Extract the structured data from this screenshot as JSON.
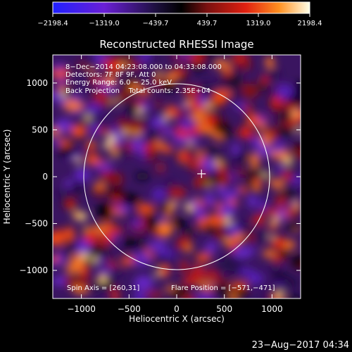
{
  "chart_data": {
    "type": "heatmap",
    "title": "Reconstructed RHESSI Image",
    "xlabel": "Heliocentric X (arcsec)",
    "ylabel": "Heliocentric Y (arcsec)",
    "xlim": [
      -1300,
      1300
    ],
    "ylim": [
      -1300,
      1300
    ],
    "x_ticks": [
      -1000,
      -500,
      0,
      500,
      1000
    ],
    "y_ticks": [
      -1000,
      -500,
      0,
      500,
      1000
    ],
    "x_tick_labels": [
      "−1000",
      "−500",
      "0",
      "500",
      "1000"
    ],
    "y_tick_labels": [
      "1000",
      "500",
      "0",
      "−500",
      "−1000"
    ],
    "colorbar": {
      "range": [
        -2198.4,
        2198.4
      ],
      "tick_labels": [
        "−2198.4",
        "−1319.0",
        "−439.7",
        "439.7",
        "1319.0",
        "2198.4"
      ],
      "colors": [
        "#2020ff",
        "#6a1fd6",
        "#1e1040",
        "#000000",
        "#7a1010",
        "#e02010",
        "#ff9020",
        "#ffffe8"
      ]
    },
    "annotations": [
      "8−Dec−2014 04:23:08.000 to 04:33:08.000",
      "Detectors: 7F 8F 9F, Att 0",
      "Energy Range: 6.0 − 25.0 keV",
      "Back Projection    Total counts: 2.35E+04"
    ],
    "spin_axis": "Spin Axis = [260,31]",
    "flare_position": "Flare Position = [−571,−471]",
    "solar_disk_radius": 975,
    "marker": {
      "x": 260,
      "y": 31
    }
  },
  "timestamp": "23−Aug−2017 04:34"
}
